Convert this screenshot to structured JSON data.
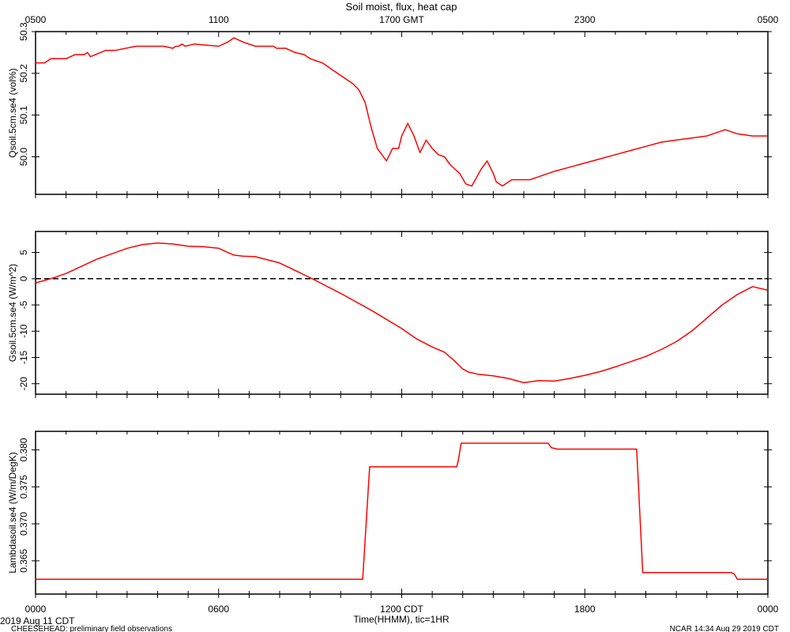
{
  "chart_data": {
    "title": "Soil moist, flux, heat cap",
    "top_axis": {
      "tick_labels": [
        "0500",
        "1100",
        "1700 GMT",
        "2300",
        "0500"
      ],
      "hours": [
        0,
        6,
        12,
        18,
        24
      ]
    },
    "bottom_axis": {
      "tick_labels": [
        "0000",
        "0600",
        "1200 CDT",
        "1800",
        "0000"
      ],
      "hours": [
        0,
        6,
        12,
        18,
        24
      ],
      "xlabel": "Time(HHMM), tic=1HR",
      "xlim": [
        0,
        24
      ]
    },
    "footer": {
      "date": "2019 Aug 11 CDT",
      "project": "CHEESEHEAD: preliminary field observations",
      "credit": "NCAR 14:34 Aug 29 2019 CDT"
    },
    "panels": [
      {
        "type": "line",
        "ylabel": "Qsoil.5cm.se4 (vol%)",
        "ylim": [
          49.91,
          50.3
        ],
        "y_ticks": [
          50.0,
          50.1,
          50.2,
          50.3
        ],
        "y_tick_labels": [
          "50.0",
          "50.1",
          "50.2",
          "50.3"
        ],
        "reference_zero": false,
        "series": [
          {
            "color": "#ff0000",
            "x": [
              0.0,
              0.3,
              0.5,
              1.0,
              1.3,
              1.6,
              1.7,
              1.8,
              2.3,
              2.6,
              3.3,
              3.6,
              3.9,
              4.2,
              4.5,
              4.6,
              4.7,
              4.8,
              4.9,
              5.2,
              6.0,
              6.3,
              6.5,
              6.8,
              7.2,
              7.8,
              7.9,
              8.2,
              8.5,
              8.8,
              9.0,
              9.2,
              9.4,
              9.6,
              9.8,
              10.0,
              10.2,
              10.4,
              10.6,
              10.8,
              11.0,
              11.2,
              11.5,
              11.7,
              11.9,
              12.0,
              12.2,
              12.4,
              12.6,
              12.8,
              13.0,
              13.2,
              13.4,
              13.6,
              13.9,
              14.1,
              14.3,
              14.6,
              14.8,
              15.0,
              15.1,
              15.3,
              15.5,
              15.6,
              15.8,
              16.0,
              16.2,
              16.4,
              16.6,
              16.8,
              17.0,
              17.5,
              18.0,
              18.5,
              19.0,
              19.5,
              20.0,
              20.5,
              21.0,
              21.5,
              22.0,
              22.4,
              22.6,
              22.8,
              23.0,
              23.5,
              24.0
            ],
            "y": [
              50.225,
              50.225,
              50.235,
              50.235,
              50.245,
              50.245,
              50.25,
              50.24,
              50.255,
              50.255,
              50.265,
              50.265,
              50.265,
              50.265,
              50.26,
              50.265,
              50.265,
              50.27,
              50.265,
              50.27,
              50.265,
              50.275,
              50.285,
              50.275,
              50.265,
              50.265,
              50.26,
              50.26,
              50.25,
              50.245,
              50.235,
              50.23,
              50.225,
              50.215,
              50.205,
              50.195,
              50.185,
              50.175,
              50.16,
              50.13,
              50.07,
              50.02,
              49.99,
              50.02,
              50.02,
              50.05,
              50.08,
              50.05,
              50.01,
              50.04,
              50.02,
              50.005,
              50.0,
              49.98,
              49.96,
              49.935,
              49.93,
              49.97,
              49.99,
              49.96,
              49.94,
              49.93,
              49.94,
              49.945,
              49.945,
              49.945,
              49.945,
              49.95,
              49.955,
              49.96,
              49.965,
              49.975,
              49.985,
              49.995,
              50.005,
              50.015,
              50.025,
              50.035,
              50.04,
              50.045,
              50.05,
              50.06,
              50.065,
              50.06,
              50.055,
              50.05,
              50.05
            ]
          }
        ]
      },
      {
        "type": "line",
        "ylabel": "Gsoil.5cm.se4 (W/m^2)",
        "ylim": [
          -22,
          9
        ],
        "y_ticks": [
          5,
          0,
          -5,
          -10,
          -15,
          -20
        ],
        "y_tick_labels": [
          "5",
          "0",
          "-5",
          "-10",
          "-15",
          "-20"
        ],
        "reference_zero": true,
        "series": [
          {
            "color": "#ff0000",
            "x": [
              0.0,
              0.5,
              1.0,
              2.0,
              3.0,
              3.5,
              4.0,
              4.5,
              5.0,
              5.5,
              6.0,
              6.3,
              6.5,
              6.8,
              7.2,
              8.0,
              9.0,
              10.0,
              11.0,
              12.0,
              12.5,
              13.0,
              13.4,
              13.7,
              14.0,
              14.2,
              14.5,
              15.0,
              15.5,
              16.0,
              16.5,
              17.0,
              17.5,
              18.0,
              18.5,
              19.0,
              19.5,
              20.0,
              20.5,
              21.0,
              21.5,
              22.0,
              22.5,
              23.0,
              23.5,
              24.0
            ],
            "y": [
              -0.8,
              0.0,
              1.0,
              3.7,
              5.8,
              6.5,
              6.8,
              6.6,
              6.2,
              6.1,
              5.8,
              5.0,
              4.5,
              4.3,
              4.2,
              3.0,
              0.2,
              -2.8,
              -6.0,
              -9.5,
              -11.5,
              -13.0,
              -14.0,
              -15.5,
              -17.2,
              -17.8,
              -18.2,
              -18.5,
              -19.0,
              -19.8,
              -19.4,
              -19.5,
              -19.0,
              -18.4,
              -17.7,
              -16.8,
              -15.8,
              -14.8,
              -13.5,
              -12.0,
              -10.0,
              -7.5,
              -5.0,
              -3.0,
              -1.5,
              -2.2
            ]
          }
        ]
      },
      {
        "type": "line",
        "ylabel": "Lambdasoil.se4 (W/m/DegK)",
        "ylim": [
          0.3605,
          0.3825
        ],
        "y_ticks": [
          0.365,
          0.37,
          0.375,
          0.38
        ],
        "y_tick_labels": [
          "0.365",
          "0.370",
          "0.375",
          "0.380"
        ],
        "reference_zero": false,
        "series": [
          {
            "color": "#ff0000",
            "x": [
              0.0,
              10.72,
              10.95,
              13.8,
              13.85,
              13.95,
              16.8,
              16.9,
              17.1,
              19.7,
              19.9,
              22.8,
              22.9,
              23.0,
              24.0
            ],
            "y": [
              0.3625,
              0.3625,
              0.3777,
              0.3777,
              0.3785,
              0.3809,
              0.3809,
              0.3803,
              0.3801,
              0.3801,
              0.3634,
              0.3634,
              0.3632,
              0.3625,
              0.3625
            ]
          }
        ]
      }
    ]
  }
}
